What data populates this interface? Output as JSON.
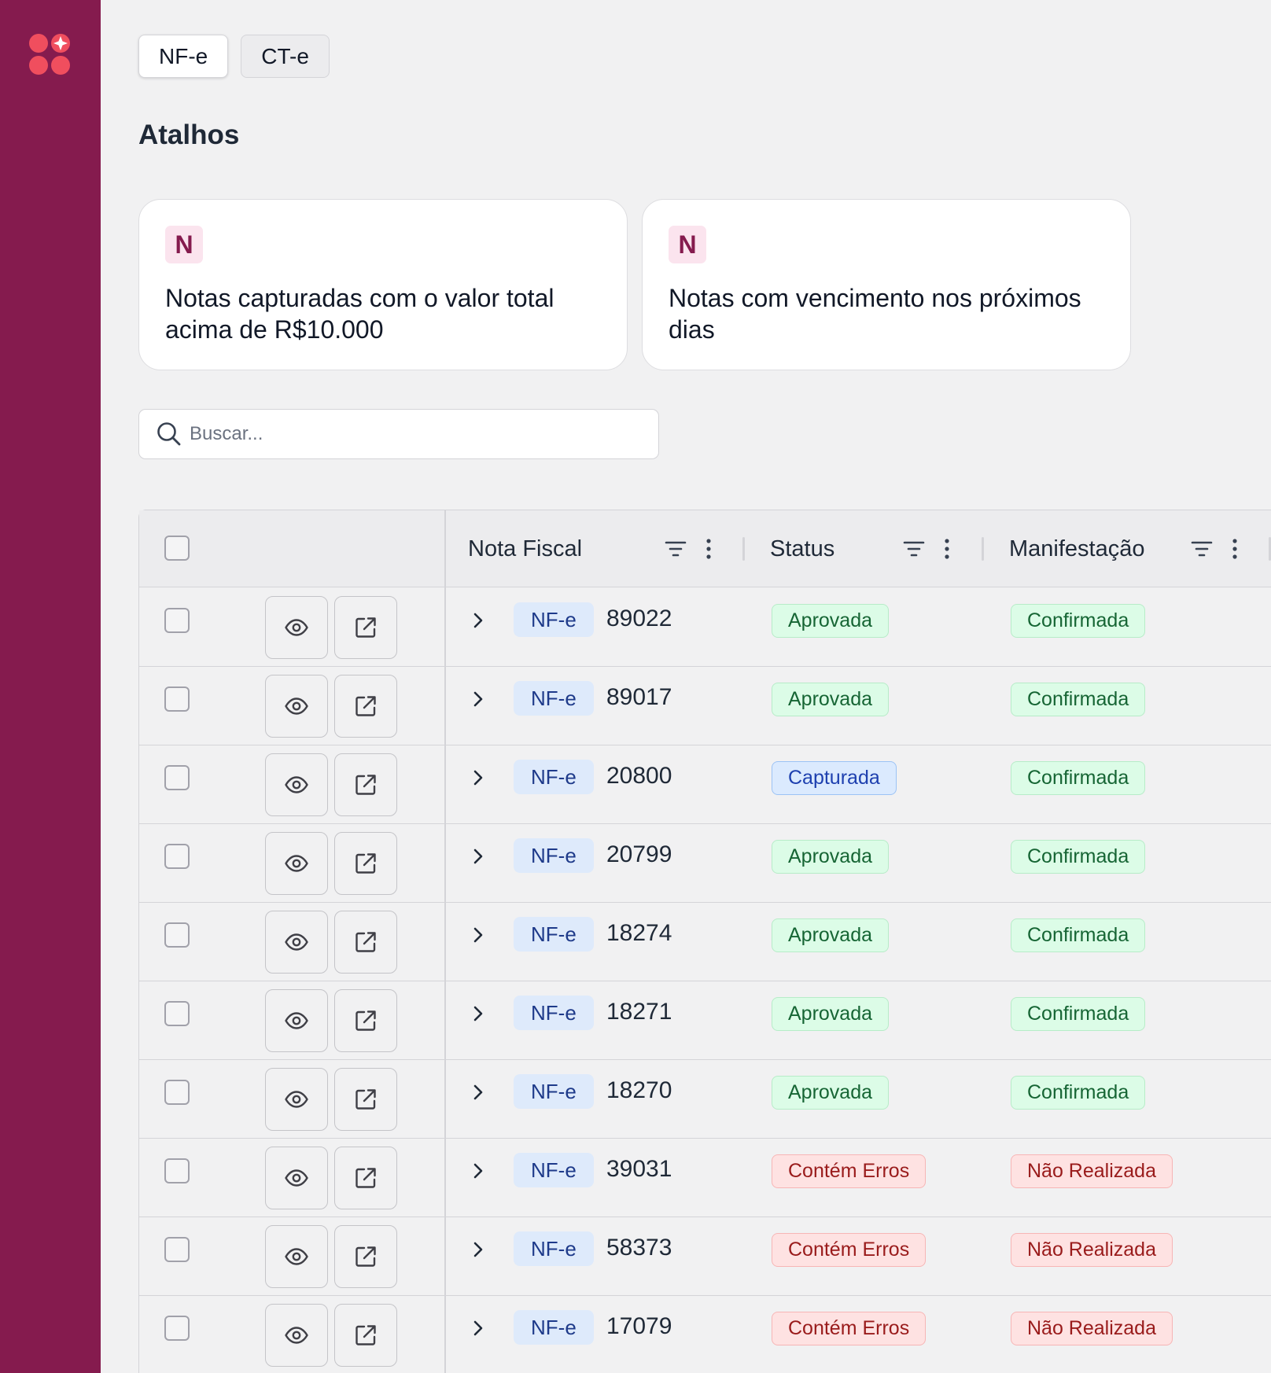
{
  "colors": {
    "sidebar": "#851b4e",
    "logo": "#f04e5e",
    "success": "#166534",
    "info": "#1e40af",
    "danger": "#991b1b"
  },
  "doc_tabs": [
    {
      "label": "NF-e",
      "active": true
    },
    {
      "label": "CT-e",
      "active": false
    }
  ],
  "shortcuts": {
    "title": "Atalhos",
    "cards": [
      {
        "badge": "N",
        "text": "Notas capturadas com o valor total acima de R$10.000"
      },
      {
        "badge": "N",
        "text": "Notas com vencimento nos próximos dias"
      }
    ]
  },
  "search": {
    "placeholder": "Buscar...",
    "value": "",
    "icon": "search-icon"
  },
  "table": {
    "columns": {
      "nota_fiscal": "Nota Fiscal",
      "status": "Status",
      "manifestacao": "Manifestação"
    },
    "rows": [
      {
        "type": "NF-e",
        "number": "89022",
        "status": "Aprovada",
        "status_tone": "green",
        "manifestacao": "Confirmada",
        "manif_tone": "green"
      },
      {
        "type": "NF-e",
        "number": "89017",
        "status": "Aprovada",
        "status_tone": "green",
        "manifestacao": "Confirmada",
        "manif_tone": "green"
      },
      {
        "type": "NF-e",
        "number": "20800",
        "status": "Capturada",
        "status_tone": "blue",
        "manifestacao": "Confirmada",
        "manif_tone": "green"
      },
      {
        "type": "NF-e",
        "number": "20799",
        "status": "Aprovada",
        "status_tone": "green",
        "manifestacao": "Confirmada",
        "manif_tone": "green"
      },
      {
        "type": "NF-e",
        "number": "18274",
        "status": "Aprovada",
        "status_tone": "green",
        "manifestacao": "Confirmada",
        "manif_tone": "green"
      },
      {
        "type": "NF-e",
        "number": "18271",
        "status": "Aprovada",
        "status_tone": "green",
        "manifestacao": "Confirmada",
        "manif_tone": "green"
      },
      {
        "type": "NF-e",
        "number": "18270",
        "status": "Aprovada",
        "status_tone": "green",
        "manifestacao": "Confirmada",
        "manif_tone": "green"
      },
      {
        "type": "NF-e",
        "number": "39031",
        "status": "Contém Erros",
        "status_tone": "red",
        "manifestacao": "Não Realizada",
        "manif_tone": "red"
      },
      {
        "type": "NF-e",
        "number": "58373",
        "status": "Contém Erros",
        "status_tone": "red",
        "manifestacao": "Não Realizada",
        "manif_tone": "red"
      },
      {
        "type": "NF-e",
        "number": "17079",
        "status": "Contém Erros",
        "status_tone": "red",
        "manifestacao": "Não Realizada",
        "manif_tone": "red"
      }
    ]
  }
}
